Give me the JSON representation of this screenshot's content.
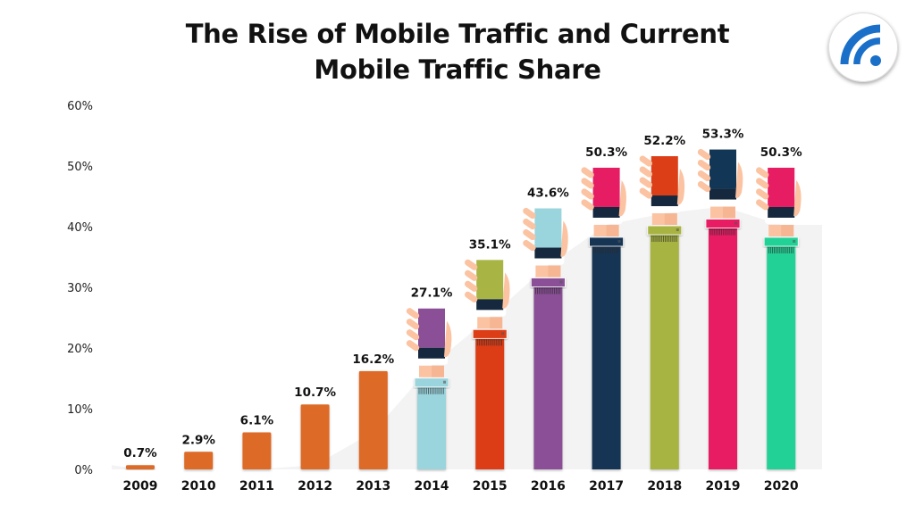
{
  "chart_data": {
    "type": "bar",
    "title": "The Rise of Mobile Traffic and Current Mobile Traffic Share",
    "title_lines": [
      "The Rise of Mobile Traffic and Current",
      "Mobile Traffic Share"
    ],
    "xlabel": "",
    "ylabel": "",
    "categories": [
      "2009",
      "2010",
      "2011",
      "2012",
      "2013",
      "2014",
      "2015",
      "2016",
      "2017",
      "2018",
      "2019",
      "2020"
    ],
    "values": [
      0.7,
      2.9,
      6.1,
      10.7,
      16.2,
      27.1,
      35.1,
      43.6,
      50.3,
      52.2,
      53.3,
      50.3
    ],
    "data_labels": [
      "0.7%",
      "2.9%",
      "6.1%",
      "10.7%",
      "16.2%",
      "27.1%",
      "35.1%",
      "43.6%",
      "50.3%",
      "52.2%",
      "53.3%",
      "50.3%"
    ],
    "ylim": [
      0,
      60
    ],
    "yticks": [
      0,
      10,
      20,
      30,
      40,
      50,
      60
    ],
    "ytick_labels": [
      "0%",
      "10%",
      "20%",
      "30%",
      "40%",
      "50%",
      "60%"
    ],
    "grid": true,
    "legend": "none",
    "bar_styles": [
      {
        "style": "plain",
        "color": "#dd6a27"
      },
      {
        "style": "plain",
        "color": "#dd6a27"
      },
      {
        "style": "plain",
        "color": "#dd6a27"
      },
      {
        "style": "plain",
        "color": "#dd6a27"
      },
      {
        "style": "plain",
        "color": "#dd6a27"
      },
      {
        "style": "arm-with-phone",
        "color": "#9ad4dd",
        "phone_color": "#8a4f96"
      },
      {
        "style": "arm-with-phone",
        "color": "#dc3e17",
        "phone_color": "#a8b443"
      },
      {
        "style": "arm-with-phone",
        "color": "#8a4f96",
        "phone_color": "#9ad4dd"
      },
      {
        "style": "arm-with-phone",
        "color": "#123655",
        "phone_color": "#e71d63"
      },
      {
        "style": "arm-with-phone",
        "color": "#a8b443",
        "phone_color": "#dc3e17"
      },
      {
        "style": "arm-with-phone",
        "color": "#e71d63",
        "phone_color": "#123655"
      },
      {
        "style": "arm-with-phone",
        "color": "#23d196",
        "phone_color": "#e71d63"
      }
    ]
  },
  "logo": {
    "icon": "wifi-signal-icon",
    "color": "#1a6fc9"
  },
  "colors": {
    "skin": "#fbc3a1",
    "skin_dark": "#f3ad8a",
    "screen_bottom": "#15283d",
    "grid": "#777777",
    "band": "#f3f3f3"
  }
}
